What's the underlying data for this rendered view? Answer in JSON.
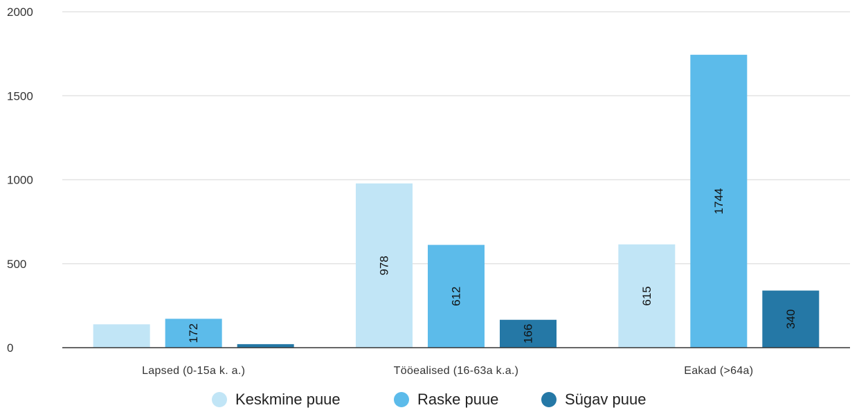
{
  "chart_data": {
    "type": "bar",
    "categories": [
      "Lapsed (0-15a k. a.)",
      "Tööealised (16-63a k.a.)",
      "Eakad (>64a)"
    ],
    "series": [
      {
        "name": "Keskmine puue",
        "color": "#c1e5f6",
        "values": [
          139,
          978,
          615
        ],
        "labels": [
          "",
          "978",
          "615"
        ]
      },
      {
        "name": "Raske puue",
        "color": "#5cbbea",
        "values": [
          172,
          612,
          1744
        ],
        "labels": [
          "172",
          "612",
          "1744"
        ]
      },
      {
        "name": "Sügav puue",
        "color": "#2578a6",
        "values": [
          21,
          166,
          340
        ],
        "labels": [
          "",
          "166",
          "340"
        ]
      }
    ],
    "yticks": [
      "0",
      "500",
      "1000",
      "1500",
      "2000"
    ],
    "ylim": [
      0,
      2000
    ],
    "grid": true,
    "legend_position": "bottom-center"
  }
}
